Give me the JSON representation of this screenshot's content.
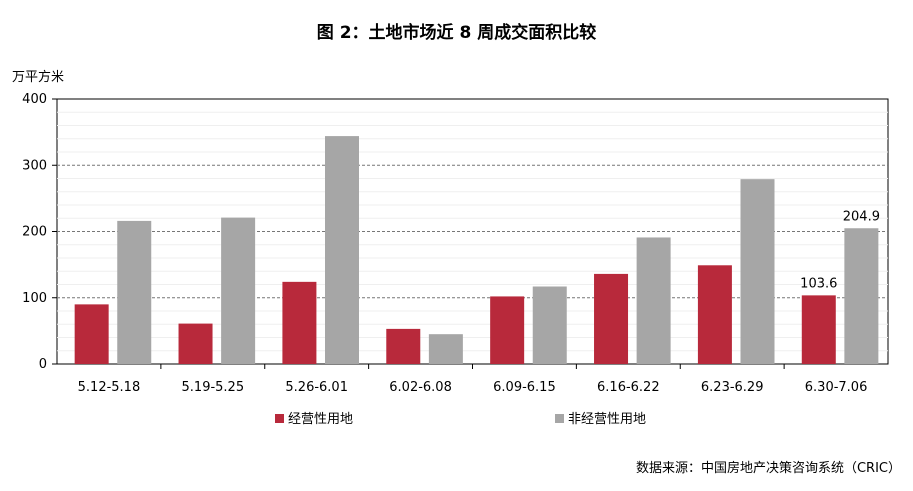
{
  "title": "图 2：土地市场近 8 周成交面积比较",
  "ylabel": "万平方米",
  "source": "数据来源：中国房地产决策咨询系统（CRIC）",
  "chart_data": {
    "type": "bar",
    "title": "图 2：土地市场近 8 周成交面积比较",
    "ylabel": "万平方米",
    "xlabel": "",
    "ylim": [
      0,
      400
    ],
    "yticks": [
      0,
      100,
      200,
      300,
      400
    ],
    "grid": true,
    "legend_position": "bottom",
    "categories": [
      "5.12-5.18",
      "5.19-5.25",
      "5.26-6.01",
      "6.02-6.08",
      "6.09-6.15",
      "6.16-6.22",
      "6.23-6.29",
      "6.30-7.06"
    ],
    "series": [
      {
        "name": "经营性用地",
        "color": "#b8293b",
        "values": [
          90,
          61,
          124,
          53,
          102,
          136,
          149,
          103.6
        ]
      },
      {
        "name": "非经营性用地",
        "color": "#a6a6a6",
        "values": [
          216,
          221,
          344,
          45,
          117,
          191,
          279,
          204.9
        ]
      }
    ],
    "data_labels": [
      {
        "series": 0,
        "index": 7,
        "text": "103.6"
      },
      {
        "series": 1,
        "index": 7,
        "text": "204.9"
      }
    ]
  }
}
